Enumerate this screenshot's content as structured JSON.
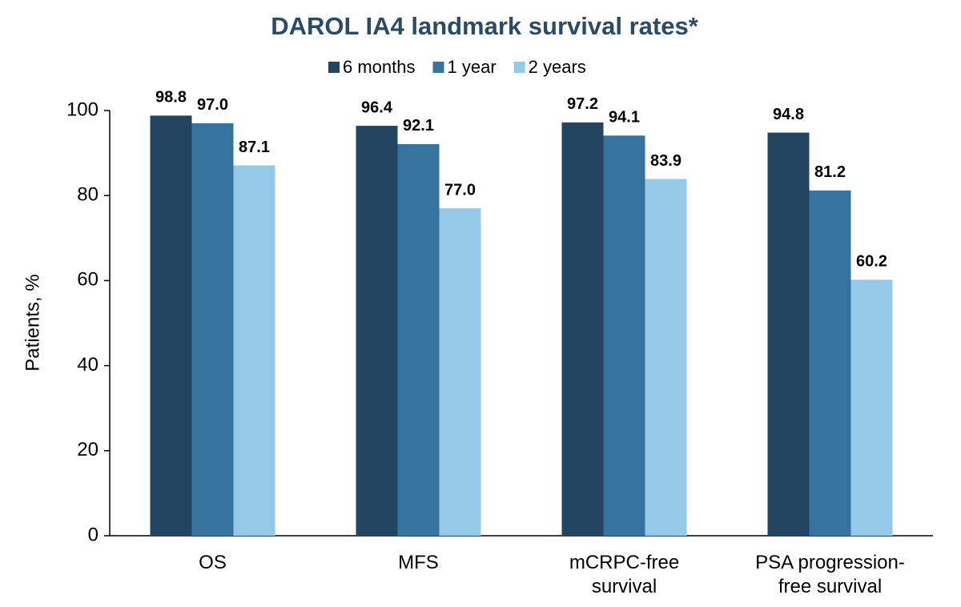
{
  "chart_data": {
    "type": "bar",
    "title": "DAROL IA4 landmark survival rates*",
    "y_label": "Patients, %",
    "categories": [
      "OS",
      "MFS",
      "mCRPC-free\nsurvival",
      "PSA progression-\nfree survival"
    ],
    "series": [
      {
        "name": "6 months",
        "color": "#23455f",
        "values": [
          98.8,
          96.4,
          97.2,
          94.8
        ],
        "value_labels": [
          "98.8",
          "96.4",
          "97.2",
          "94.8"
        ]
      },
      {
        "name": "1 year",
        "color": "#36749f",
        "values": [
          97,
          92.1,
          94.1,
          81.2
        ],
        "value_labels": [
          "97.0",
          "92.1",
          "94.1",
          "81.2"
        ]
      },
      {
        "name": "2 years",
        "color": "#95c9e8",
        "values": [
          87.1,
          77,
          83.9,
          60.2
        ],
        "value_labels": [
          "87.1",
          "77.0",
          "83.9",
          "60.2"
        ]
      }
    ],
    "ylim": [
      0,
      100
    ],
    "yticks": [
      0,
      20,
      40,
      60,
      80,
      100
    ],
    "grid": false,
    "legend": "top"
  }
}
